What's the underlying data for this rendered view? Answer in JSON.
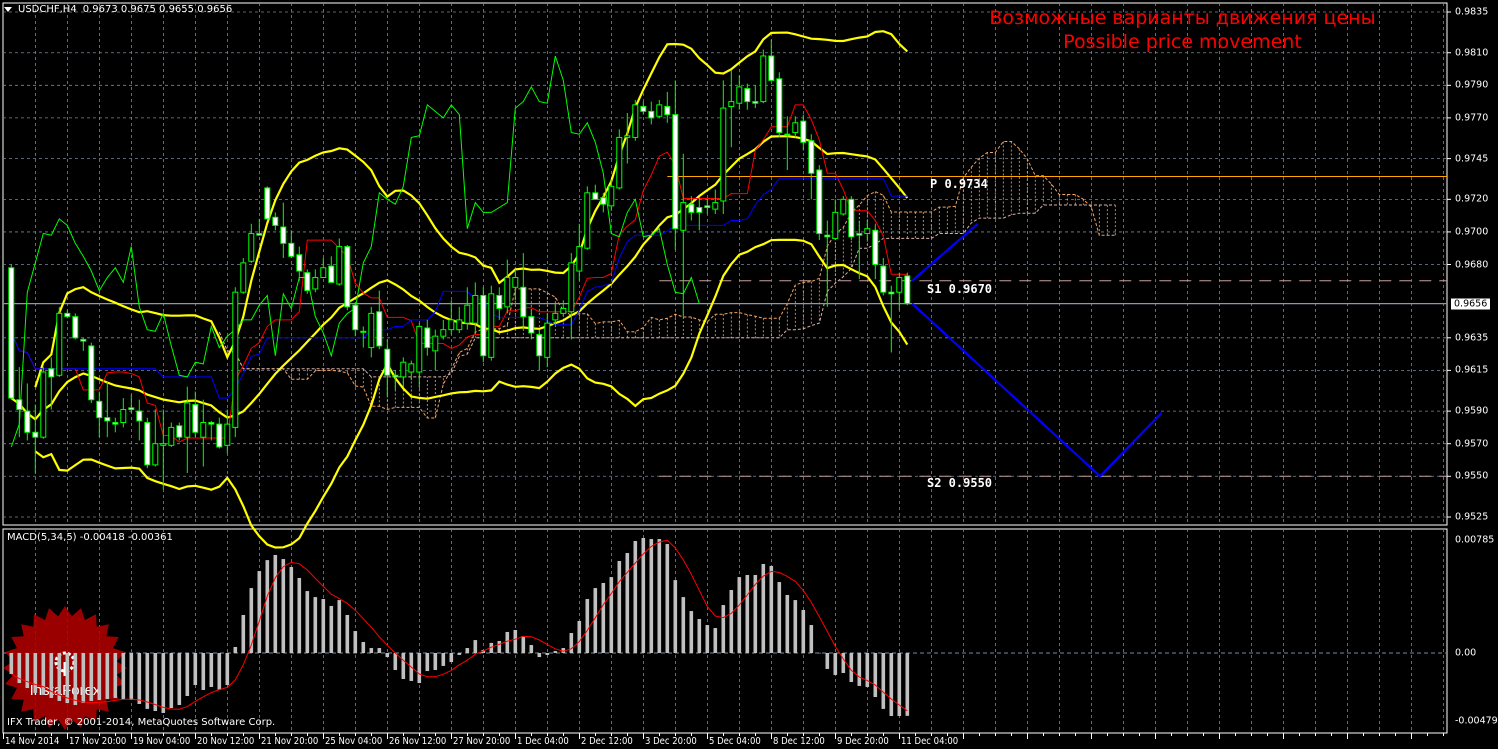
{
  "header": {
    "symbol": "USDCHF,H4",
    "ohlc": "0.9673 0.9675 0.9655 0.9656"
  },
  "annotation": {
    "title_ru": "Возможные варианты движения цены",
    "title_en": "Possible price movement"
  },
  "levels": [
    {
      "text": "P 0.9734",
      "price": 0.9734,
      "color": "#ffa500",
      "style": "solid"
    },
    {
      "text": "S1 0.9670",
      "price": 0.967,
      "color": "#c8a0a0",
      "style": "dashed"
    },
    {
      "text": "S2 0.9550",
      "price": 0.955,
      "color": "#c8a0a0",
      "style": "dashed"
    }
  ],
  "current_price": {
    "value": "0.9656",
    "price": 0.9656
  },
  "price_axis": {
    "max": 0.9835,
    "min": 0.9525,
    "ticks": [
      "0.9835",
      "0.9810",
      "0.9790",
      "0.9770",
      "0.9745",
      "0.9720",
      "0.9700",
      "0.9680",
      "0.9635",
      "0.9615",
      "0.9590",
      "0.9570",
      "0.9550",
      "0.9525"
    ]
  },
  "time_axis": {
    "labels": [
      "14 Nov 2014",
      "17 Nov 20:00",
      "19 Nov 04:00",
      "20 Nov 12:00",
      "21 Nov 20:00",
      "25 Nov 04:00",
      "26 Nov 12:00",
      "27 Nov 20:00",
      "1 Dec 04:00",
      "2 Dec 12:00",
      "3 Dec 20:00",
      "5 Dec 04:00",
      "8 Dec 12:00",
      "9 Dec 20:00",
      "11 Dec 04:00"
    ]
  },
  "macd": {
    "label": "MACD(5,34,5) -0.00418 -0.00361",
    "axis_max": 0.00785,
    "axis_min": -0.00479,
    "axis_ticks": [
      "0.00785",
      "0.00",
      "-0.00479"
    ],
    "signal_period": 5,
    "histogram": [
      -0.0014,
      -0.002,
      -0.00233,
      -0.00266,
      -0.00279,
      -0.00299,
      -0.00319,
      -0.00333,
      -0.00346,
      -0.00333,
      -0.00319,
      -0.00313,
      -0.00306,
      -0.00299,
      -0.00306,
      -0.00313,
      -0.00339,
      -0.00372,
      -0.00386,
      -0.00399,
      -0.00366,
      -0.00346,
      -0.00286,
      -0.00213,
      -0.00246,
      -0.00226,
      -0.00246,
      -0.00213,
      0.0004,
      0.00253,
      0.00432,
      0.00545,
      0.00618,
      0.00652,
      0.00625,
      0.00572,
      0.00499,
      0.00412,
      0.00372,
      0.00359,
      0.00313,
      0.00352,
      0.00253,
      0.00146,
      0.00073,
      0.00033,
      0.00033,
      -0.00027,
      -0.00113,
      -0.00173,
      -0.00186,
      -0.002,
      -0.0012,
      -0.00113,
      -0.00086,
      -0.0006,
      -0.00013,
      0.00033,
      0.00086,
      0.0002,
      0.00067,
      0.0008,
      0.0014,
      0.00153,
      0.00113,
      0.00053,
      -0.00027,
      -0.00013,
      0.00013,
      0.00033,
      0.00133,
      0.00213,
      0.00359,
      0.00432,
      0.00466,
      0.00505,
      0.00612,
      0.00665,
      0.00745,
      0.00765,
      0.00758,
      0.00758,
      0.00725,
      0.00485,
      0.00372,
      0.00279,
      0.00226,
      0.00186,
      0.00166,
      0.00319,
      0.00419,
      0.00505,
      0.00519,
      0.00519,
      0.00592,
      0.00579,
      0.00472,
      0.00386,
      0.00352,
      0.00286,
      0.00186,
      1e-05,
      -0.00106,
      -0.00146,
      -0.00133,
      -0.00193,
      -0.00219,
      -0.00226,
      -0.00293,
      -0.00372,
      -0.00419,
      -0.00419,
      -0.00418
    ]
  },
  "forecast_paths": [
    [
      [
        112.6,
        0.967
      ],
      [
        120.8,
        0.9705
      ]
    ],
    [
      [
        112.6,
        0.9656
      ],
      [
        136.1,
        0.955
      ],
      [
        143.8,
        0.9589
      ]
    ]
  ],
  "footer": "IFX Trader, © 2001-2014, MetaQuotes Software Corp.",
  "logo": {
    "text": "InstaForex"
  },
  "colors": {
    "candle_outline": "#00ff00",
    "bear_body": "#ffffff",
    "bollinger": "#ffff00",
    "tenkan": "#ff0000",
    "kijun": "#0000ff",
    "chikou": "#00ff00",
    "cloud": "#f4a460",
    "forecast": "#0000ff",
    "annotation": "#ff0000",
    "grid": "#778899",
    "macd_hist": "#c0c0c0",
    "macd_signal": "#ff0000"
  },
  "chart_data": {
    "type": "candlestick",
    "symbol": "USDCHF",
    "timeframe": "H4",
    "ylim": [
      0.9525,
      0.9835
    ],
    "indicators": [
      "Bollinger Bands",
      "Ichimoku Kinko Hyo",
      "MACD(5,34,5)"
    ],
    "candles_ohlc": [
      [
        0.9678,
        0.968,
        0.9597,
        0.9598
      ],
      [
        0.9597,
        0.9617,
        0.9574,
        0.9591
      ],
      [
        0.959,
        0.9607,
        0.9572,
        0.9577
      ],
      [
        0.9577,
        0.9594,
        0.9552,
        0.9574
      ],
      [
        0.9574,
        0.9617,
        0.9573,
        0.9614
      ],
      [
        0.9616,
        0.9623,
        0.9591,
        0.9611
      ],
      [
        0.9612,
        0.9654,
        0.9611,
        0.965
      ],
      [
        0.965,
        0.9652,
        0.9647,
        0.9648
      ],
      [
        0.9648,
        0.965,
        0.9634,
        0.9635
      ],
      [
        0.9634,
        0.9635,
        0.9627,
        0.9633
      ],
      [
        0.963,
        0.9632,
        0.9595,
        0.9597
      ],
      [
        0.9596,
        0.9602,
        0.9574,
        0.9586
      ],
      [
        0.9586,
        0.9608,
        0.9574,
        0.9584
      ],
      [
        0.9583,
        0.9586,
        0.9577,
        0.9582
      ],
      [
        0.9583,
        0.9598,
        0.958,
        0.9591
      ],
      [
        0.9592,
        0.96,
        0.9589,
        0.9591
      ],
      [
        0.959,
        0.9597,
        0.9572,
        0.9584
      ],
      [
        0.9583,
        0.9586,
        0.9555,
        0.9557
      ],
      [
        0.9557,
        0.9591,
        0.9556,
        0.957
      ],
      [
        0.9569,
        0.9591,
        0.9542,
        0.957
      ],
      [
        0.9569,
        0.9583,
        0.9568,
        0.958
      ],
      [
        0.9581,
        0.9583,
        0.9572,
        0.9574
      ],
      [
        0.9574,
        0.9605,
        0.9552,
        0.9595
      ],
      [
        0.9594,
        0.9602,
        0.9574,
        0.9577
      ],
      [
        0.9574,
        0.9597,
        0.9556,
        0.9583
      ],
      [
        0.9583,
        0.9584,
        0.9572,
        0.9582
      ],
      [
        0.9582,
        0.9586,
        0.9567,
        0.9568
      ],
      [
        0.9569,
        0.9591,
        0.9564,
        0.9582
      ],
      [
        0.958,
        0.9666,
        0.9574,
        0.9663
      ],
      [
        0.9663,
        0.9684,
        0.9662,
        0.9681
      ],
      [
        0.9682,
        0.9705,
        0.9681,
        0.9699
      ],
      [
        0.9699,
        0.9708,
        0.9698,
        0.9698
      ],
      [
        0.9727,
        0.9728,
        0.9707,
        0.9708
      ],
      [
        0.9709,
        0.9712,
        0.9701,
        0.9704
      ],
      [
        0.9703,
        0.9718,
        0.9684,
        0.9693
      ],
      [
        0.9693,
        0.9701,
        0.9684,
        0.9685
      ],
      [
        0.9686,
        0.9691,
        0.967,
        0.9676
      ],
      [
        0.9675,
        0.9677,
        0.9662,
        0.9664
      ],
      [
        0.9665,
        0.9677,
        0.9663,
        0.9672
      ],
      [
        0.9672,
        0.9684,
        0.9672,
        0.9678
      ],
      [
        0.9679,
        0.9685,
        0.9669,
        0.9669
      ],
      [
        0.9668,
        0.9696,
        0.9667,
        0.9691
      ],
      [
        0.9691,
        0.9692,
        0.9652,
        0.9654
      ],
      [
        0.9655,
        0.9657,
        0.9636,
        0.964
      ],
      [
        0.9639,
        0.9642,
        0.9629,
        0.9639
      ],
      [
        0.9629,
        0.9654,
        0.9623,
        0.965
      ],
      [
        0.9651,
        0.9664,
        0.9628,
        0.963
      ],
      [
        0.9628,
        0.9634,
        0.9599,
        0.9612
      ],
      [
        0.9612,
        0.9615,
        0.9603,
        0.9611
      ],
      [
        0.9611,
        0.9623,
        0.9605,
        0.962
      ],
      [
        0.9614,
        0.9621,
        0.9609,
        0.9619
      ],
      [
        0.9614,
        0.9644,
        0.9605,
        0.9642
      ],
      [
        0.9641,
        0.9646,
        0.9624,
        0.9629
      ],
      [
        0.9627,
        0.964,
        0.9615,
        0.9636
      ],
      [
        0.9636,
        0.9646,
        0.9634,
        0.964
      ],
      [
        0.964,
        0.9658,
        0.9637,
        0.9646
      ],
      [
        0.964,
        0.9654,
        0.9638,
        0.9646
      ],
      [
        0.9644,
        0.9666,
        0.964,
        0.9655
      ],
      [
        0.9644,
        0.9669,
        0.9638,
        0.9661
      ],
      [
        0.9661,
        0.9666,
        0.962,
        0.9624
      ],
      [
        0.9623,
        0.9667,
        0.9621,
        0.9662
      ],
      [
        0.9661,
        0.9666,
        0.9646,
        0.9653
      ],
      [
        0.9654,
        0.9683,
        0.965,
        0.9672
      ],
      [
        0.9666,
        0.9677,
        0.9658,
        0.9672
      ],
      [
        0.9666,
        0.9687,
        0.964,
        0.9648
      ],
      [
        0.9648,
        0.9652,
        0.9634,
        0.9638
      ],
      [
        0.9637,
        0.964,
        0.9615,
        0.9624
      ],
      [
        0.9623,
        0.965,
        0.9617,
        0.9644
      ],
      [
        0.9646,
        0.9656,
        0.9643,
        0.965
      ],
      [
        0.965,
        0.9658,
        0.9648,
        0.9653
      ],
      [
        0.9651,
        0.9687,
        0.9634,
        0.9681
      ],
      [
        0.9676,
        0.9705,
        0.967,
        0.9691
      ],
      [
        0.969,
        0.9728,
        0.9689,
        0.9724
      ],
      [
        0.9724,
        0.9729,
        0.972,
        0.972
      ],
      [
        0.9721,
        0.9724,
        0.9712,
        0.9717
      ],
      [
        0.9716,
        0.9732,
        0.9713,
        0.9728
      ],
      [
        0.9727,
        0.9763,
        0.9726,
        0.9758
      ],
      [
        0.9758,
        0.9773,
        0.9742,
        0.9759
      ],
      [
        0.9758,
        0.9781,
        0.9756,
        0.9778
      ],
      [
        0.9777,
        0.978,
        0.9772,
        0.9774
      ],
      [
        0.9774,
        0.978,
        0.9766,
        0.977
      ],
      [
        0.9771,
        0.9781,
        0.977,
        0.9778
      ],
      [
        0.9777,
        0.9786,
        0.9767,
        0.9772
      ],
      [
        0.9772,
        0.9793,
        0.9689,
        0.9702
      ],
      [
        0.9701,
        0.9748,
        0.9648,
        0.9718
      ],
      [
        0.9717,
        0.9722,
        0.9707,
        0.9712
      ],
      [
        0.9715,
        0.9721,
        0.9701,
        0.9712
      ],
      [
        0.9716,
        0.972,
        0.9711,
        0.9715
      ],
      [
        0.9714,
        0.9726,
        0.9711,
        0.9718
      ],
      [
        0.9719,
        0.9793,
        0.9711,
        0.9776
      ],
      [
        0.9777,
        0.9799,
        0.9752,
        0.978
      ],
      [
        0.9779,
        0.9796,
        0.9775,
        0.9789
      ],
      [
        0.9788,
        0.9791,
        0.9775,
        0.978
      ],
      [
        0.978,
        0.979,
        0.9776,
        0.9779
      ],
      [
        0.978,
        0.9812,
        0.9779,
        0.9808
      ],
      [
        0.9808,
        0.9818,
        0.9793,
        0.9793
      ],
      [
        0.9794,
        0.9798,
        0.9758,
        0.9761
      ],
      [
        0.976,
        0.9771,
        0.9738,
        0.976
      ],
      [
        0.9761,
        0.9771,
        0.9758,
        0.9767
      ],
      [
        0.9768,
        0.9772,
        0.975,
        0.9755
      ],
      [
        0.9756,
        0.976,
        0.972,
        0.9736
      ],
      [
        0.9738,
        0.9741,
        0.9695,
        0.9699
      ],
      [
        0.9698,
        0.9707,
        0.9654,
        0.9697
      ],
      [
        0.9696,
        0.972,
        0.9695,
        0.9712
      ],
      [
        0.9711,
        0.9722,
        0.971,
        0.972
      ],
      [
        0.972,
        0.9722,
        0.9695,
        0.9697
      ],
      [
        0.9699,
        0.9707,
        0.9671,
        0.9698
      ],
      [
        0.9699,
        0.9707,
        0.9695,
        0.9702
      ],
      [
        0.9701,
        0.9704,
        0.9671,
        0.968
      ],
      [
        0.9679,
        0.9684,
        0.9661,
        0.9663
      ],
      [
        0.9663,
        0.9667,
        0.9626,
        0.9662
      ],
      [
        0.9663,
        0.9675,
        0.9652,
        0.9672
      ],
      [
        0.9673,
        0.9675,
        0.9655,
        0.9656
      ]
    ]
  }
}
